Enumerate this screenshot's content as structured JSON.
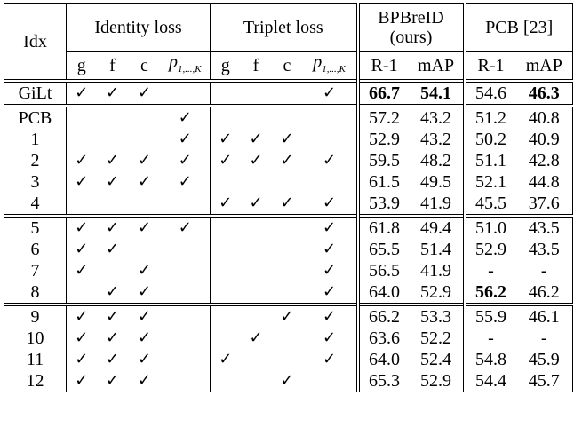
{
  "table": {
    "header": {
      "idx": "Idx",
      "groups": [
        "Identity loss",
        "Triplet loss",
        "BPBreID (ours)",
        "PCB [23]"
      ],
      "sub": [
        {
          "main": "g"
        },
        {
          "main": "f"
        },
        {
          "main": "c"
        },
        {
          "main": "p",
          "sub": "1,...,K"
        },
        {
          "main": "g"
        },
        {
          "main": "f"
        },
        {
          "main": "c"
        },
        {
          "main": "p",
          "sub": "1,...,K"
        },
        {
          "main": "R-1"
        },
        {
          "main": "mAP"
        },
        {
          "main": "R-1"
        },
        {
          "main": "mAP"
        }
      ]
    },
    "groups": [
      {
        "rows": [
          {
            "idx": "GiLt",
            "checks": [
              "✓",
              "✓",
              "✓",
              null,
              null,
              null,
              null,
              "✓"
            ],
            "scores": [
              "66.7",
              "54.1",
              "54.6",
              "46.3"
            ],
            "bold": [
              0,
              1,
              3
            ]
          }
        ]
      },
      {
        "rows": [
          {
            "idx": "PCB",
            "checks": [
              null,
              null,
              null,
              "✓",
              null,
              null,
              null,
              null
            ],
            "scores": [
              "57.2",
              "43.2",
              "51.2",
              "40.8"
            ]
          },
          {
            "idx": "1",
            "checks": [
              null,
              null,
              null,
              "✓",
              "✓",
              "✓",
              "✓",
              null
            ],
            "scores": [
              "52.9",
              "43.2",
              "50.2",
              "40.9"
            ]
          },
          {
            "idx": "2",
            "checks": [
              "✓",
              "✓",
              "✓",
              "✓",
              "✓",
              "✓",
              "✓",
              "✓"
            ],
            "scores": [
              "59.5",
              "48.2",
              "51.1",
              "42.8"
            ]
          },
          {
            "idx": "3",
            "checks": [
              "✓",
              "✓",
              "✓",
              "✓",
              null,
              null,
              null,
              null
            ],
            "scores": [
              "61.5",
              "49.5",
              "52.1",
              "44.8"
            ]
          },
          {
            "idx": "4",
            "checks": [
              null,
              null,
              null,
              null,
              "✓",
              "✓",
              "✓",
              "✓"
            ],
            "scores": [
              "53.9",
              "41.9",
              "45.5",
              "37.6"
            ]
          }
        ]
      },
      {
        "rows": [
          {
            "idx": "5",
            "checks": [
              "✓",
              "✓",
              "✓",
              "✓",
              null,
              null,
              null,
              "✓"
            ],
            "scores": [
              "61.8",
              "49.4",
              "51.0",
              "43.5"
            ]
          },
          {
            "idx": "6",
            "checks": [
              "✓",
              "✓",
              null,
              null,
              null,
              null,
              null,
              "✓"
            ],
            "scores": [
              "65.5",
              "51.4",
              "52.9",
              "43.5"
            ]
          },
          {
            "idx": "7",
            "checks": [
              "✓",
              null,
              "✓",
              null,
              null,
              null,
              null,
              "✓"
            ],
            "scores": [
              "56.5",
              "41.9",
              "-",
              "-"
            ]
          },
          {
            "idx": "8",
            "checks": [
              null,
              "✓",
              "✓",
              null,
              null,
              null,
              null,
              "✓"
            ],
            "scores": [
              "64.0",
              "52.9",
              "56.2",
              "46.2"
            ],
            "bold": [
              2
            ]
          }
        ]
      },
      {
        "rows": [
          {
            "idx": "9",
            "checks": [
              "✓",
              "✓",
              "✓",
              null,
              null,
              null,
              "✓",
              "✓"
            ],
            "scores": [
              "66.2",
              "53.3",
              "55.9",
              "46.1"
            ]
          },
          {
            "idx": "10",
            "checks": [
              "✓",
              "✓",
              "✓",
              null,
              null,
              "✓",
              null,
              "✓"
            ],
            "scores": [
              "63.6",
              "52.2",
              "-",
              "-"
            ]
          },
          {
            "idx": "11",
            "checks": [
              "✓",
              "✓",
              "✓",
              null,
              "✓",
              null,
              null,
              "✓"
            ],
            "scores": [
              "64.0",
              "52.4",
              "54.8",
              "45.9"
            ]
          },
          {
            "idx": "12",
            "checks": [
              "✓",
              "✓",
              "✓",
              null,
              null,
              null,
              "✓",
              null
            ],
            "scores": [
              "65.3",
              "52.9",
              "54.4",
              "45.7"
            ]
          }
        ]
      }
    ]
  }
}
